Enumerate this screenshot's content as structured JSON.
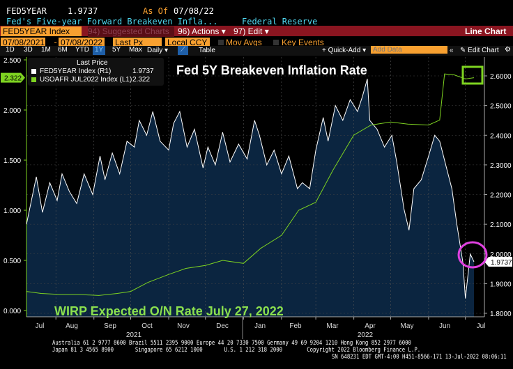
{
  "header": {
    "ticker": "FED5YEAR",
    "last": "1.9737",
    "asof_label": "As Of",
    "asof_date": "07/08/22",
    "description": "Fed's Five-year Forward Breakeven Infla...",
    "source": "Federal Reserve"
  },
  "toolbar": {
    "security": "FED5YEAR Index",
    "suggested": "94) Suggested Charts",
    "actions": "96) Actions ▾",
    "edit": "97) Edit ▾",
    "chart_type": "Line Chart",
    "start_date": "07/08/2021",
    "end_date": "07/08/2022",
    "field": "Last Px",
    "currency": "Local CCY",
    "mov_avgs": "Mov Avgs",
    "key_events": "Key Events",
    "periods": [
      "1D",
      "3D",
      "1M",
      "6M",
      "YTD",
      "1Y",
      "5Y",
      "Max"
    ],
    "active_period": "1Y",
    "frequency": "Daily ▾",
    "table": "Table",
    "quick_add": "+ Quick-Add ▾",
    "add_data_placeholder": "Add Data",
    "edit_chart": "Edit Chart"
  },
  "chart_data": {
    "type": "line",
    "title": "Fed 5Y Breakeven Inflation Rate",
    "annotation": "WIRP Expected O/N Rate July 27, 2022",
    "legend": {
      "heading": "Last Price",
      "placement": "top-left",
      "entries": [
        {
          "name": "FED5YEAR Index",
          "axis": "(R1)",
          "last": "1.9737",
          "color": "#ffffff"
        },
        {
          "name": "USOAFR JUL2022 Index",
          "axis": "(L1)",
          "last": "2.322",
          "color": "#7ed321"
        }
      ]
    },
    "x_ticks": [
      "Jul",
      "Aug",
      "Sep",
      "Oct",
      "Nov",
      "Dec",
      "Jan",
      "Feb",
      "Mar",
      "Apr",
      "May",
      "Jun",
      "Jul"
    ],
    "years": [
      "2021",
      "2022"
    ],
    "xlim": [
      "2021-07-08",
      "2022-07-08"
    ],
    "left_axis": {
      "ylim": [
        0,
        2.5
      ],
      "ticks": [
        "2.500",
        "2.000",
        "1.500",
        "1.000",
        "0.500",
        "0.000"
      ],
      "last_tag": "2.322"
    },
    "right_axis": {
      "ylim": [
        1.8,
        2.6
      ],
      "ticks": [
        "2.6000",
        "2.5000",
        "2.4000",
        "2.3000",
        "2.2000",
        "2.1000",
        "2.0000",
        "1.9000",
        "1.8000"
      ],
      "last_tag": "1.9737"
    },
    "series": [
      {
        "name": "FED5YEAR Index",
        "axis": "right",
        "color": "#ffffff",
        "fill": "#0b2540",
        "points": [
          [
            "2021-07-08",
            2.1
          ],
          [
            "2021-07-13",
            2.2
          ],
          [
            "2021-07-16",
            2.26
          ],
          [
            "2021-07-21",
            2.14
          ],
          [
            "2021-07-27",
            2.24
          ],
          [
            "2021-08-02",
            2.18
          ],
          [
            "2021-08-06",
            2.27
          ],
          [
            "2021-08-12",
            2.21
          ],
          [
            "2021-08-18",
            2.17
          ],
          [
            "2021-08-24",
            2.27
          ],
          [
            "2021-08-31",
            2.2
          ],
          [
            "2021-09-06",
            2.33
          ],
          [
            "2021-09-10",
            2.25
          ],
          [
            "2021-09-16",
            2.34
          ],
          [
            "2021-09-22",
            2.27
          ],
          [
            "2021-09-28",
            2.38
          ],
          [
            "2021-10-04",
            2.36
          ],
          [
            "2021-10-08",
            2.45
          ],
          [
            "2021-10-14",
            2.4
          ],
          [
            "2021-10-19",
            2.48
          ],
          [
            "2021-10-25",
            2.38
          ],
          [
            "2021-11-01",
            2.35
          ],
          [
            "2021-11-05",
            2.44
          ],
          [
            "2021-11-10",
            2.48
          ],
          [
            "2021-11-16",
            2.36
          ],
          [
            "2021-11-22",
            2.42
          ],
          [
            "2021-11-29",
            2.29
          ],
          [
            "2021-12-03",
            2.36
          ],
          [
            "2021-12-09",
            2.3
          ],
          [
            "2021-12-15",
            2.41
          ],
          [
            "2021-12-21",
            2.31
          ],
          [
            "2021-12-28",
            2.37
          ],
          [
            "2022-01-04",
            2.32
          ],
          [
            "2022-01-10",
            2.45
          ],
          [
            "2022-01-14",
            2.4
          ],
          [
            "2022-01-20",
            2.3
          ],
          [
            "2022-01-26",
            2.35
          ],
          [
            "2022-02-01",
            2.27
          ],
          [
            "2022-02-07",
            2.33
          ],
          [
            "2022-02-14",
            2.22
          ],
          [
            "2022-02-18",
            2.24
          ],
          [
            "2022-02-24",
            2.22
          ],
          [
            "2022-03-01",
            2.35
          ],
          [
            "2022-03-07",
            2.46
          ],
          [
            "2022-03-11",
            2.38
          ],
          [
            "2022-03-17",
            2.5
          ],
          [
            "2022-03-23",
            2.45
          ],
          [
            "2022-03-29",
            2.52
          ],
          [
            "2022-04-04",
            2.48
          ],
          [
            "2022-04-08",
            2.53
          ],
          [
            "2022-04-12",
            2.59
          ],
          [
            "2022-04-14",
            2.45
          ],
          [
            "2022-04-20",
            2.42
          ],
          [
            "2022-04-26",
            2.36
          ],
          [
            "2022-05-02",
            2.4
          ],
          [
            "2022-05-06",
            2.31
          ],
          [
            "2022-05-12",
            2.15
          ],
          [
            "2022-05-16",
            2.08
          ],
          [
            "2022-05-20",
            2.22
          ],
          [
            "2022-05-26",
            2.25
          ],
          [
            "2022-06-01",
            2.33
          ],
          [
            "2022-06-06",
            2.4
          ],
          [
            "2022-06-10",
            2.38
          ],
          [
            "2022-06-15",
            2.3
          ],
          [
            "2022-06-20",
            2.22
          ],
          [
            "2022-06-24",
            2.1
          ],
          [
            "2022-06-29",
            1.97
          ],
          [
            "2022-07-01",
            1.85
          ],
          [
            "2022-07-05",
            2.0
          ],
          [
            "2022-07-08",
            1.9737
          ]
        ]
      },
      {
        "name": "USOAFR JUL2022 Index",
        "axis": "left",
        "color": "#7ed321",
        "points": [
          [
            "2021-07-08",
            0.19
          ],
          [
            "2021-07-20",
            0.17
          ],
          [
            "2021-08-05",
            0.16
          ],
          [
            "2021-08-20",
            0.16
          ],
          [
            "2021-09-05",
            0.15
          ],
          [
            "2021-09-20",
            0.17
          ],
          [
            "2021-10-01",
            0.19
          ],
          [
            "2021-10-15",
            0.28
          ],
          [
            "2021-11-01",
            0.36
          ],
          [
            "2021-11-15",
            0.42
          ],
          [
            "2021-12-01",
            0.45
          ],
          [
            "2021-12-15",
            0.5
          ],
          [
            "2022-01-01",
            0.47
          ],
          [
            "2022-01-15",
            0.62
          ],
          [
            "2022-02-01",
            0.75
          ],
          [
            "2022-02-15",
            1.0
          ],
          [
            "2022-03-01",
            1.08
          ],
          [
            "2022-03-15",
            1.4
          ],
          [
            "2022-04-01",
            1.75
          ],
          [
            "2022-04-15",
            1.85
          ],
          [
            "2022-05-01",
            1.88
          ],
          [
            "2022-05-15",
            1.86
          ],
          [
            "2022-06-01",
            1.85
          ],
          [
            "2022-06-10",
            1.9
          ],
          [
            "2022-06-14",
            2.36
          ],
          [
            "2022-06-22",
            2.35
          ],
          [
            "2022-07-01",
            2.31
          ],
          [
            "2022-07-08",
            2.322
          ]
        ]
      }
    ]
  },
  "footer": {
    "line1": "Australia 61 2 9777 8600 Brazil 5511 2395 9000 Europe 44 20 7330 7500 Germany 49 69 9204 1210 Hong Kong 852 2977 6000",
    "line2": "Japan 81 3 4565 8900       Singapore 65 6212 1000       U.S. 1 212 318 2000        Copyright 2022 Bloomberg Finance L.P.",
    "line3": "SN 648231 EDT  GMT-4:00 H451-8566-171 13-Jul-2022 08:06:11"
  }
}
